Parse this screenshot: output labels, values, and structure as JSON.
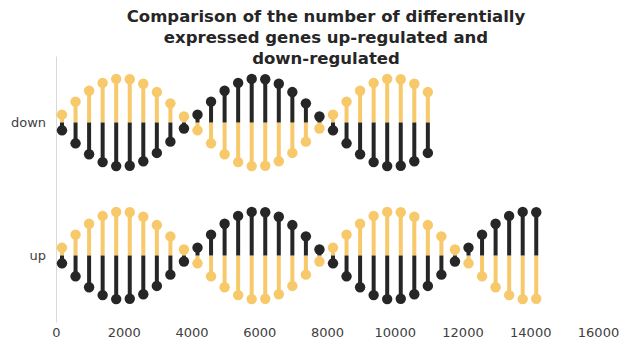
{
  "chart_data": {
    "type": "bar",
    "orientation": "horizontal",
    "title": "Comparison of the number of differentially expressed genes up-regulated and down-regulated",
    "categories": [
      "down",
      "up"
    ],
    "values": [
      11000,
      14300
    ],
    "xlim": [
      0,
      16000
    ],
    "xticks": [
      0,
      2000,
      4000,
      6000,
      8000,
      10000,
      12000,
      14000,
      16000
    ],
    "grid": false
  }
}
